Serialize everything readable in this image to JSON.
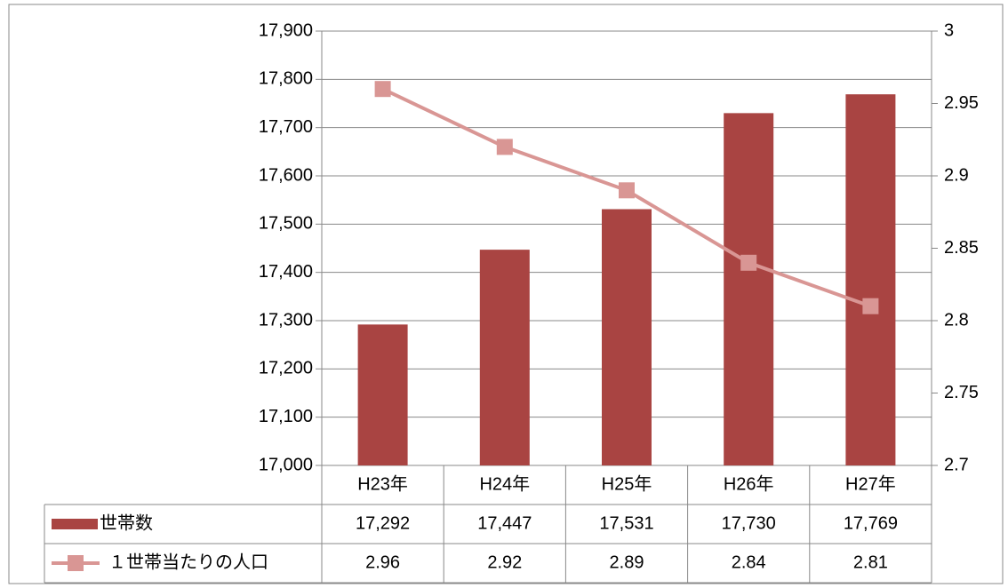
{
  "chart_data": {
    "type": "bar",
    "categories": [
      "H23年",
      "H24年",
      "H25年",
      "H26年",
      "H27年"
    ],
    "series": [
      {
        "name": "世帯数",
        "type": "bar",
        "color": "#a94442",
        "values": [
          17292,
          17447,
          17531,
          17730,
          17769
        ],
        "value_labels": [
          "17,292",
          "17,447",
          "17,531",
          "17,730",
          "17,769"
        ]
      },
      {
        "name": "１世帯当たりの人口",
        "type": "line",
        "axis": "y2",
        "color": "#d99694",
        "values": [
          2.96,
          2.92,
          2.89,
          2.84,
          2.81
        ]
      }
    ],
    "ylim": [
      17000,
      17900
    ],
    "yticks": [
      {
        "value": 17000,
        "label": "17,000"
      },
      {
        "value": 17100,
        "label": "17,100"
      },
      {
        "value": 17200,
        "label": "17,200"
      },
      {
        "value": 17300,
        "label": "17,300"
      },
      {
        "value": 17400,
        "label": "17,400"
      },
      {
        "value": 17500,
        "label": "17,500"
      },
      {
        "value": 17600,
        "label": "17,600"
      },
      {
        "value": 17700,
        "label": "17,700"
      },
      {
        "value": 17800,
        "label": "17,800"
      },
      {
        "value": 17900,
        "label": "17,900"
      }
    ],
    "y2lim": [
      2.7,
      3
    ],
    "y2ticks": [
      2.7,
      2.75,
      2.8,
      2.85,
      2.9,
      2.95,
      3
    ],
    "grid": true,
    "data_table": true
  }
}
